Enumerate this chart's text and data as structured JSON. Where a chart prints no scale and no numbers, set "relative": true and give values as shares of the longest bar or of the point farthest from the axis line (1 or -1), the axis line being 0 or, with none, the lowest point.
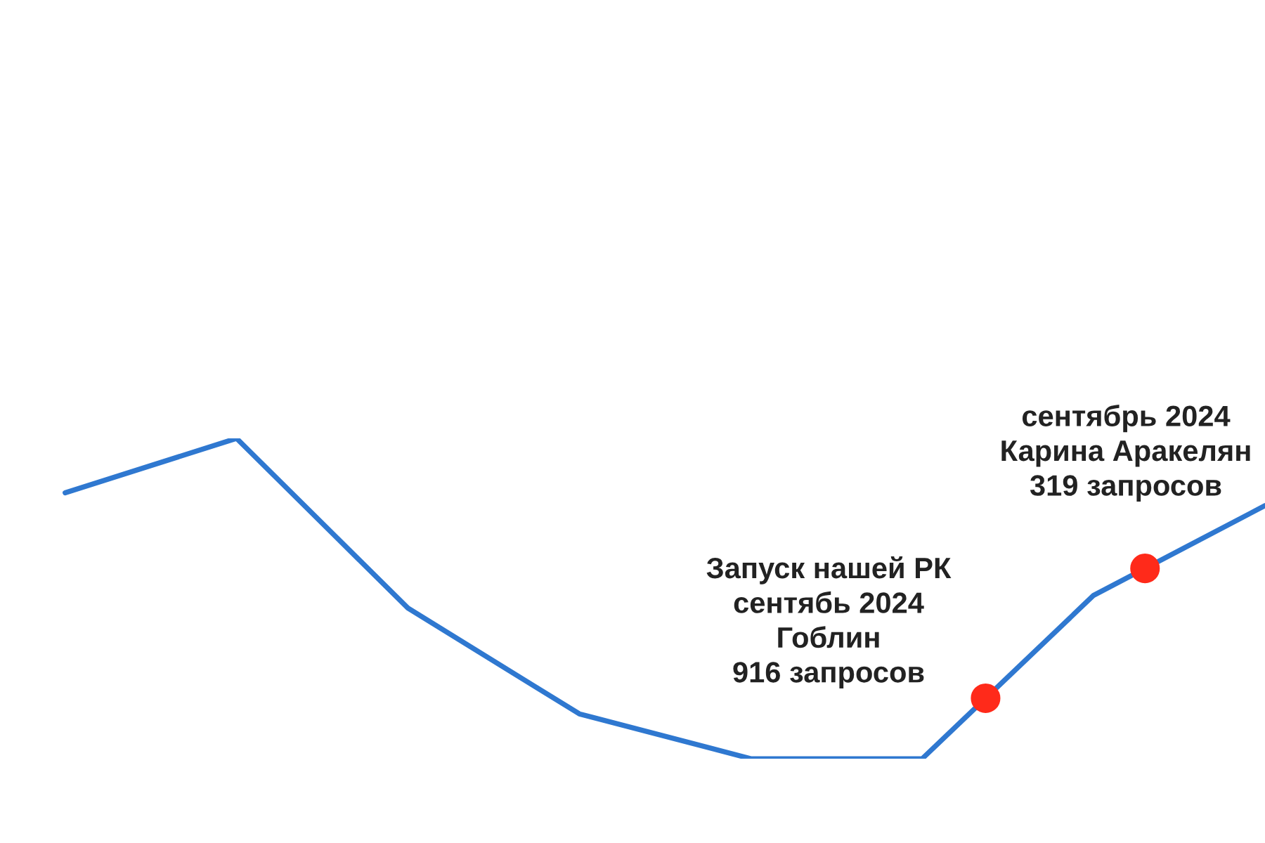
{
  "chart_data": {
    "type": "line",
    "relative": true,
    "categories": [
      null,
      null,
      null,
      null,
      null,
      null,
      null,
      null
    ],
    "series": [
      {
        "color": "#2f78d0",
        "values": [
          0.83,
          1,
          0.47,
          0.14,
          0,
          0,
          0.51,
          0.79
        ]
      }
    ],
    "annotations": [
      "Запуск нашей РК\nсентябь 2024\nГоблин\n916 запросов",
      "сентябрь 2024\nКарина Аракелян\n319 запросов"
    ]
  }
}
